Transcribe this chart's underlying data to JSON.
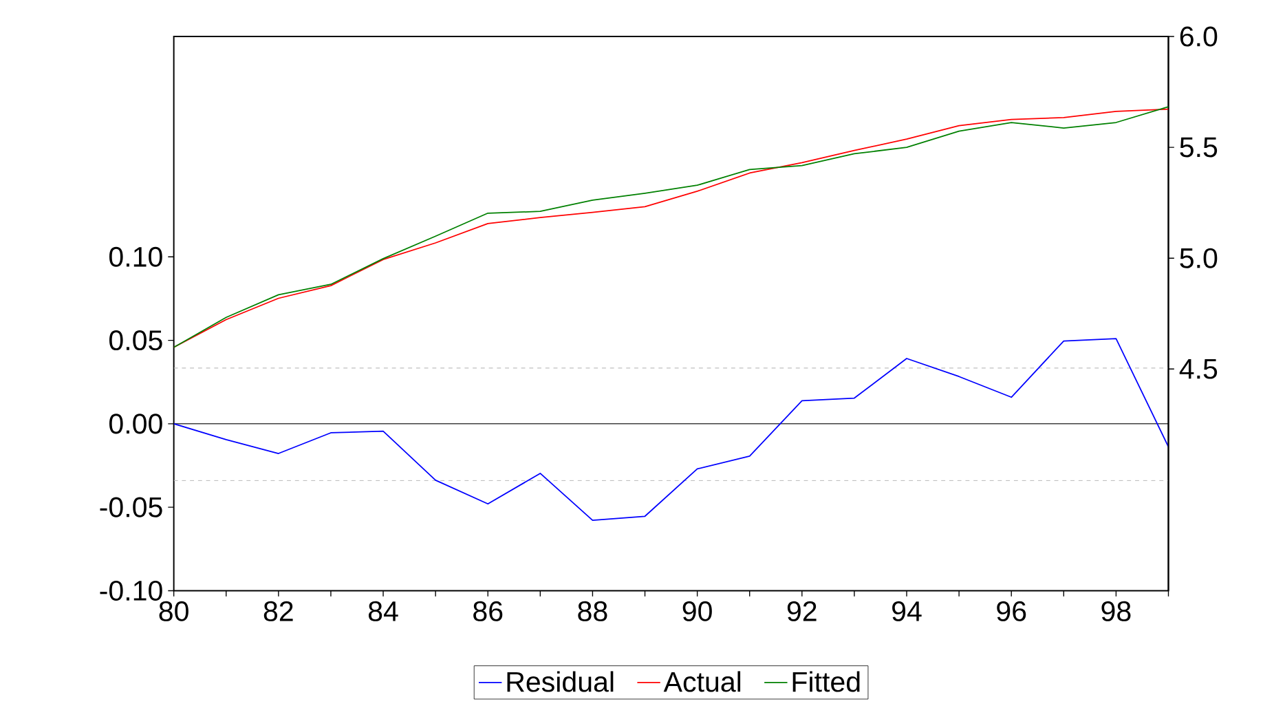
{
  "chart_data": {
    "type": "line",
    "x": [
      1980,
      1981,
      1982,
      1983,
      1984,
      1985,
      1986,
      1987,
      1988,
      1989,
      1990,
      1991,
      1992,
      1993,
      1994,
      1995,
      1996,
      1997,
      1998,
      1999
    ],
    "series": [
      {
        "name": "Residual",
        "color": "#0000ff",
        "values": [
          0.0,
          -0.0095,
          -0.0178,
          -0.0054,
          -0.0044,
          -0.0338,
          -0.048,
          -0.0297,
          -0.0578,
          -0.0554,
          -0.027,
          -0.0194,
          0.0138,
          0.0154,
          0.0391,
          0.0283,
          0.0159,
          0.0496,
          0.051,
          -0.0138
        ]
      },
      {
        "name": "Actual",
        "color": "#ff0000",
        "axis": "y2",
        "values": [
          4.598,
          4.723,
          4.819,
          4.876,
          4.994,
          5.069,
          5.156,
          5.183,
          5.207,
          5.232,
          5.302,
          5.384,
          5.431,
          5.486,
          5.537,
          5.598,
          5.626,
          5.634,
          5.662,
          5.672
        ]
      },
      {
        "name": "Fitted",
        "color": "#008000",
        "axis": "y2",
        "values": [
          4.598,
          4.733,
          4.835,
          4.882,
          4.998,
          5.099,
          5.203,
          5.211,
          5.262,
          5.293,
          5.329,
          5.4,
          5.418,
          5.471,
          5.5,
          5.573,
          5.612,
          5.587,
          5.612,
          5.683
        ]
      }
    ],
    "xlim": [
      1980,
      1999
    ],
    "xticks": [
      {
        "value": 1980,
        "label": "80"
      },
      {
        "value": 1981,
        "label": null
      },
      {
        "value": 1982,
        "label": "82"
      },
      {
        "value": 1983,
        "label": null
      },
      {
        "value": 1984,
        "label": "84"
      },
      {
        "value": 1985,
        "label": null
      },
      {
        "value": 1986,
        "label": "86"
      },
      {
        "value": 1987,
        "label": null
      },
      {
        "value": 1988,
        "label": "88"
      },
      {
        "value": 1989,
        "label": null
      },
      {
        "value": 1990,
        "label": "90"
      },
      {
        "value": 1991,
        "label": null
      },
      {
        "value": 1992,
        "label": "92"
      },
      {
        "value": 1993,
        "label": null
      },
      {
        "value": 1994,
        "label": "94"
      },
      {
        "value": 1995,
        "label": null
      },
      {
        "value": 1996,
        "label": "96"
      },
      {
        "value": 1997,
        "label": null
      },
      {
        "value": 1998,
        "label": "98"
      },
      {
        "value": 1999,
        "label": null
      }
    ],
    "ylim": [
      -0.1,
      0.232
    ],
    "yticks": [
      {
        "value": -0.1,
        "label": "-0.10"
      },
      {
        "value": -0.05,
        "label": "-0.05"
      },
      {
        "value": 0,
        "label": "0.00"
      },
      {
        "value": 0.05,
        "label": "0.05"
      },
      {
        "value": 0.1,
        "label": "0.10"
      }
    ],
    "y2lim": [
      3.5,
      6.0
    ],
    "y2ticks": [
      {
        "value": 4.5,
        "label": "4.5"
      },
      {
        "value": 5,
        "label": "5.0"
      },
      {
        "value": 5.5,
        "label": "5.5"
      },
      {
        "value": 6,
        "label": "6.0"
      }
    ],
    "ref_lines": [
      {
        "axis": "y",
        "value": 0.0334,
        "color": "#c0c0c0",
        "line_style": "dashed"
      },
      {
        "axis": "y",
        "value": 0,
        "color": "#000000",
        "line_style": "solid"
      },
      {
        "axis": "y",
        "value": -0.034,
        "color": "#c0c0c0",
        "line_style": "dashed"
      }
    ],
    "grid": false,
    "legend": "bottom",
    "line_style": "solid"
  }
}
